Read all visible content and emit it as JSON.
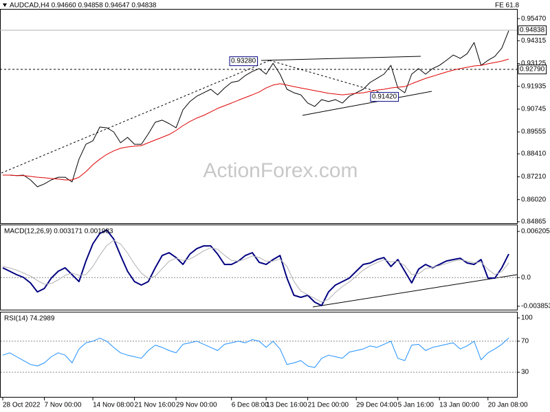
{
  "chart_data": [
    {
      "type": "line",
      "title": "AUDCAD,H4  0.94660 0.94858 0.94647 0.94838",
      "annotations": [
        {
          "text": "FE 61.8"
        },
        {
          "text": "0.93280"
        },
        {
          "text": "0.91420"
        },
        {
          "text": "0.94838"
        },
        {
          "text": "0.92790"
        },
        {
          "text": "ActionForex.com"
        }
      ],
      "ylim": [
        0.8479,
        0.9594
      ],
      "yticks": [
        {
          "value": 0.9547,
          "label": "0.95470"
        },
        0.94315,
        0.93125,
        0.91935,
        0.90745,
        0.89555,
        {
          "value": 0.8841,
          "label": "0.88410"
        },
        {
          "value": 0.8721,
          "label": "0.87210"
        },
        {
          "value": 0.8602,
          "label": "0.86020"
        },
        0.84865
      ],
      "series": [
        {
          "color": "#000000",
          "values": [
            0.873,
            0.873,
            0.8727,
            0.873,
            0.8705,
            0.8669,
            0.8684,
            0.8705,
            0.8719,
            0.8719,
            0.8694,
            0.8813,
            0.8891,
            0.8909,
            0.8981,
            0.8977,
            0.8956,
            0.8899,
            0.8927,
            0.8891,
            0.8891,
            0.8945,
            0.9006,
            0.9017,
            0.8999,
            0.8977,
            0.9071,
            0.9114,
            0.9142,
            0.916,
            0.9178,
            0.9149,
            0.9185,
            0.9214,
            0.9221,
            0.925,
            0.9271,
            0.9286,
            0.9257,
            0.9314,
            0.9257,
            0.9178,
            0.916,
            0.9149,
            0.9106,
            0.9088,
            0.9124,
            0.9114,
            0.9124,
            0.9106,
            0.9142,
            0.916,
            0.9178,
            0.9214,
            0.9235,
            0.9257,
            0.9303,
            0.9185,
            0.916,
            0.9257,
            0.9286,
            0.9257,
            0.9286,
            0.9303,
            0.9329,
            0.9357,
            0.9339,
            0.9364,
            0.9422,
            0.9303,
            0.9329,
            0.935,
            0.9393,
            0.94838
          ]
        },
        {
          "color": "#e00000",
          "values": [
            0.873,
            0.873,
            0.8727,
            0.8727,
            0.8723,
            0.8719,
            0.8716,
            0.8712,
            0.8709,
            0.8705,
            0.8705,
            0.8719,
            0.8748,
            0.8784,
            0.8813,
            0.8838,
            0.8856,
            0.887,
            0.8877,
            0.8881,
            0.8884,
            0.8899,
            0.8913,
            0.8927,
            0.8942,
            0.8963,
            0.8988,
            0.901,
            0.9028,
            0.9042,
            0.906,
            0.9078,
            0.9092,
            0.9106,
            0.9121,
            0.9135,
            0.9149,
            0.9164,
            0.9185,
            0.92,
            0.9207,
            0.92,
            0.9192,
            0.9185,
            0.9178,
            0.9171,
            0.9164,
            0.9157,
            0.9153,
            0.9149,
            0.9153,
            0.9157,
            0.916,
            0.9167,
            0.9174,
            0.9178,
            0.9185,
            0.9189,
            0.9192,
            0.9207,
            0.9221,
            0.9235,
            0.9246,
            0.9257,
            0.9268,
            0.9278,
            0.9286,
            0.9293,
            0.93,
            0.9303,
            0.9311,
            0.9318,
            0.9325,
            0.9336
          ]
        }
      ]
    },
    {
      "type": "line",
      "title": "MACD(12,26,9) 0.003171 0.001983",
      "ylim": [
        -0.004314,
        0.007035
      ],
      "yticks": [
        0.006205,
        {
          "value": 0,
          "label": "0.0"
        },
        -0.003853
      ],
      "levels": [
        0
      ],
      "series": [
        {
          "color": "#000080",
          "values": [
            0.00131,
            0.00085,
            0.00039,
            2e-05,
            -0.00072,
            -0.00192,
            -0.00146,
            -7e-05,
            0.00085,
            0.00131,
            0.00039,
            -0.00054,
            0.00223,
            0.00454,
            0.00593,
            0.00639,
            0.00519,
            0.00297,
            0.00085,
            -0.00054,
            -0.001,
            -0.00054,
            0.00131,
            0.00297,
            0.00334,
            0.00269,
            0.00177,
            0.00316,
            0.00389,
            0.00426,
            0.00426,
            0.00316,
            0.00177,
            0.00177,
            0.00223,
            0.00297,
            0.00334,
            0.00205,
            0.00177,
            0.00242,
            0.00297,
            -7e-05,
            -0.00238,
            -0.00265,
            -0.00238,
            -0.0033,
            -0.00376,
            -0.00192,
            -0.001,
            -0.00054,
            -7e-05,
            0.00085,
            0.00177,
            0.00196,
            0.00242,
            0.00269,
            0.00149,
            0.00242,
            0.00085,
            -0.00072,
            0.00113,
            0.00177,
            0.00131,
            0.00177,
            0.00223,
            0.00242,
            0.0026,
            0.00196,
            0.00177,
            0.00242,
            -7e-05,
            -7e-05,
            0.00131,
            0.003171
          ]
        },
        {
          "color": "#b0b0b0",
          "values": [
            0.0015,
            0.0013,
            0.001,
            0.0006,
            0.0002,
            -0.0004,
            -0.0009,
            -0.0008,
            -0.0003,
            0.0003,
            0.0006,
            0.0003,
            0.0004,
            0.0015,
            0.003,
            0.0043,
            0.005,
            0.0045,
            0.0033,
            0.0018,
            0.0006,
            -0.0001,
            0.0002,
            0.0012,
            0.0022,
            0.0026,
            0.0023,
            0.0025,
            0.003,
            0.0036,
            0.004,
            0.0038,
            0.003,
            0.0023,
            0.0022,
            0.0025,
            0.0029,
            0.0027,
            0.0022,
            0.0022,
            0.0025,
            0.0015,
            -0.0005,
            -0.0018,
            -0.0023,
            -0.0028,
            -0.0033,
            -0.0029,
            -0.002,
            -0.0012,
            -0.0006,
            0.0002,
            0.001,
            0.0016,
            0.002,
            0.0024,
            0.0021,
            0.0022,
            0.0016,
            0.0004,
            0.0005,
            0.0012,
            0.0014,
            0.0016,
            0.0019,
            0.0022,
            0.0024,
            0.0022,
            0.002,
            0.0021,
            0.0011,
            0.0004,
            0.0008,
            0.001983
          ]
        }
      ]
    },
    {
      "type": "line",
      "title": "RSI(14) 74.2989",
      "ylim": [
        -1.8,
        107.1
      ],
      "yticks": [
        100,
        70,
        30
      ],
      "levels": [
        70,
        30
      ],
      "categories": [
        "28 Oct 2022",
        null,
        null,
        null,
        null,
        null,
        "7 Nov 00:00",
        null,
        null,
        null,
        null,
        null,
        null,
        "14 Nov 08:00",
        null,
        null,
        null,
        null,
        null,
        "21 Nov 16:00",
        null,
        null,
        null,
        null,
        null,
        "29 Nov 00:00",
        null,
        null,
        null,
        null,
        null,
        null,
        null,
        "6 Dec 08:00",
        null,
        null,
        null,
        null,
        "13 Dec 16:00",
        null,
        null,
        null,
        null,
        null,
        "21 Dec 00:00",
        null,
        null,
        null,
        null,
        null,
        null,
        "29 Dec 04:00",
        null,
        null,
        null,
        null,
        null,
        "5 Jan 16:00",
        null,
        null,
        null,
        null,
        null,
        "13 Jan 00:00",
        null,
        null,
        null,
        null,
        null,
        null,
        "20 Jan 08:00",
        null,
        null,
        null
      ],
      "series": [
        {
          "color": "#1e90ff",
          "values": [
            52,
            55,
            50,
            45,
            40,
            38,
            42,
            50,
            55,
            52,
            42,
            60,
            68,
            70,
            74,
            70,
            62,
            55,
            52,
            50,
            48,
            58,
            65,
            62,
            58,
            55,
            66,
            68,
            70,
            66,
            62,
            58,
            66,
            68,
            70,
            68,
            72,
            70,
            62,
            70,
            60,
            40,
            42,
            45,
            38,
            36,
            48,
            52,
            50,
            48,
            56,
            58,
            60,
            64,
            62,
            66,
            70,
            48,
            45,
            65,
            66,
            58,
            62,
            64,
            66,
            68,
            60,
            64,
            70,
            46,
            55,
            60,
            66,
            74.2989
          ]
        }
      ]
    }
  ]
}
